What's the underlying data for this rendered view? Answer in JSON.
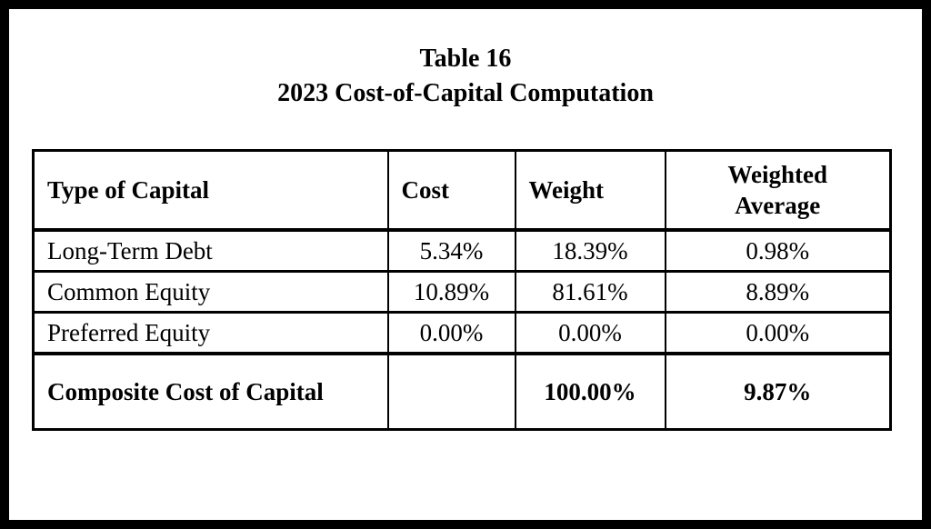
{
  "page": {
    "title_line1": "Table 16",
    "title_line2": "2023 Cost-of-Capital Computation"
  },
  "table": {
    "columns": {
      "type": "Type of Capital",
      "cost": "Cost",
      "weight": "Weight",
      "weighted_average": "Weighted Average"
    },
    "rows": [
      {
        "type": "Long-Term Debt",
        "cost": "5.34%",
        "weight": "18.39%",
        "weighted_average": "0.98%"
      },
      {
        "type": "Common Equity",
        "cost": "10.89%",
        "weight": "81.61%",
        "weighted_average": "8.89%"
      },
      {
        "type": "Preferred Equity",
        "cost": "0.00%",
        "weight": "0.00%",
        "weighted_average": "0.00%"
      }
    ],
    "total_row": {
      "type": "Composite Cost of Capital",
      "cost": "",
      "weight": "100.00%",
      "weighted_average": "9.87%"
    }
  },
  "colors": {
    "border": "#000000",
    "background": "#ffffff",
    "text": "#000000"
  }
}
